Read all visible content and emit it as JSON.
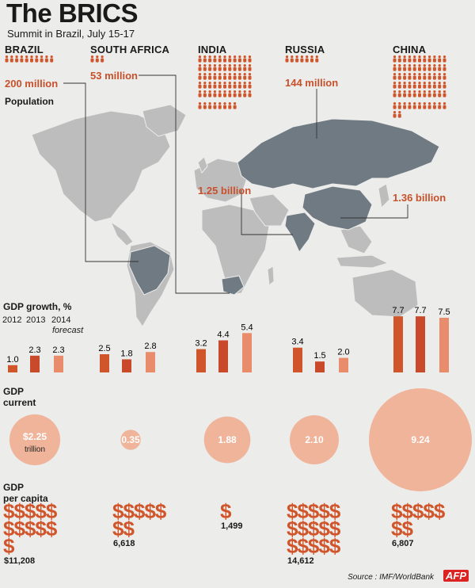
{
  "header": {
    "title": "The BRICS",
    "subtitle": "Summit in Brazil, July 15-17"
  },
  "labels": {
    "population": "Population",
    "gdp_growth": "GDP growth, %",
    "gdp_current": "GDP\ncurrent",
    "gdp_per_capita": "GDP\nper capita",
    "year_2012": "2012",
    "year_2013": "2013",
    "year_2014": "2014",
    "forecast": "forecast",
    "trillion": "trillion",
    "source": "Source : IMF/WorldBank",
    "logo": "AFP",
    "dollar_sign": "$"
  },
  "colors": {
    "accent": "#d0552a",
    "bar_2012": "#d0552a",
    "bar_2013": "#c94a2a",
    "bar_2014": "#e88c6c",
    "bubble": "#efb49a",
    "map_land": "#bdbdbd",
    "map_brics": "#707a82"
  },
  "chart_data": [
    {
      "type": "pictograph",
      "title": "Population",
      "categories": [
        "BRAZIL",
        "SOUTH AFRICA",
        "INDIA",
        "RUSSIA",
        "CHINA"
      ],
      "values_millions": [
        200,
        53,
        1250,
        144,
        1360
      ],
      "value_labels": [
        "200 million",
        "53 million",
        "1.25 billion",
        "144 million",
        "1.36 billion"
      ]
    },
    {
      "type": "bar",
      "title": "GDP growth, %",
      "categories": [
        "BRAZIL",
        "SOUTH AFRICA",
        "INDIA",
        "RUSSIA",
        "CHINA"
      ],
      "series": [
        {
          "name": "2012",
          "values": [
            1.0,
            2.5,
            3.2,
            3.4,
            7.7
          ]
        },
        {
          "name": "2013",
          "values": [
            2.3,
            1.8,
            4.4,
            1.5,
            7.7
          ]
        },
        {
          "name": "2014 forecast",
          "values": [
            2.3,
            2.8,
            5.4,
            2.0,
            7.5
          ]
        }
      ],
      "value_labels": [
        [
          "1.0",
          "2.3",
          "2.3"
        ],
        [
          "2.5",
          "1.8",
          "2.8"
        ],
        [
          "3.2",
          "4.4",
          "5.4"
        ],
        [
          "3.4",
          "1.5",
          "2.0"
        ],
        [
          "7.7",
          "7.7",
          "7.5"
        ]
      ]
    },
    {
      "type": "bubble",
      "title": "GDP current",
      "unit": "trillion",
      "categories": [
        "BRAZIL",
        "SOUTH AFRICA",
        "INDIA",
        "RUSSIA",
        "CHINA"
      ],
      "values": [
        2.25,
        0.35,
        1.88,
        2.1,
        9.24
      ],
      "value_labels": [
        "$2.25",
        "0.35",
        "1.88",
        "2.10",
        "9.24"
      ]
    },
    {
      "type": "pictograph",
      "title": "GDP per capita",
      "categories": [
        "BRAZIL",
        "SOUTH AFRICA",
        "INDIA",
        "RUSSIA",
        "CHINA"
      ],
      "values": [
        11208,
        6618,
        1499,
        14612,
        6807
      ],
      "value_labels": [
        "$11,208",
        "6,618",
        "1,499",
        "14,612",
        "6,807"
      ]
    }
  ]
}
